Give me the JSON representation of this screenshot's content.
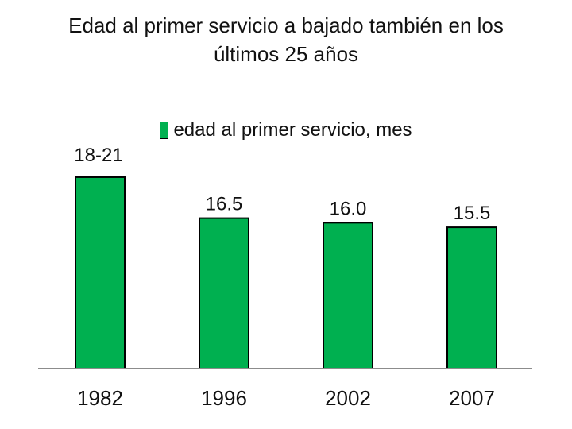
{
  "chart_data": {
    "type": "bar",
    "title_lines": [
      "Edad al primer servicio a bajado también en los",
      "últimos 25 años"
    ],
    "legend": "edad al primer servicio, mes",
    "categories": [
      "1982",
      "1996",
      "2002",
      "2007"
    ],
    "series": [
      {
        "name": "edad al primer servicio, mes",
        "values": [
          21,
          16.5,
          16.0,
          15.5
        ],
        "labels": [
          "18-21",
          "16.5",
          "16.0",
          "15.5"
        ]
      }
    ],
    "bar_color": "#00b050",
    "ylim": [
      0,
      23
    ],
    "grid": false
  }
}
